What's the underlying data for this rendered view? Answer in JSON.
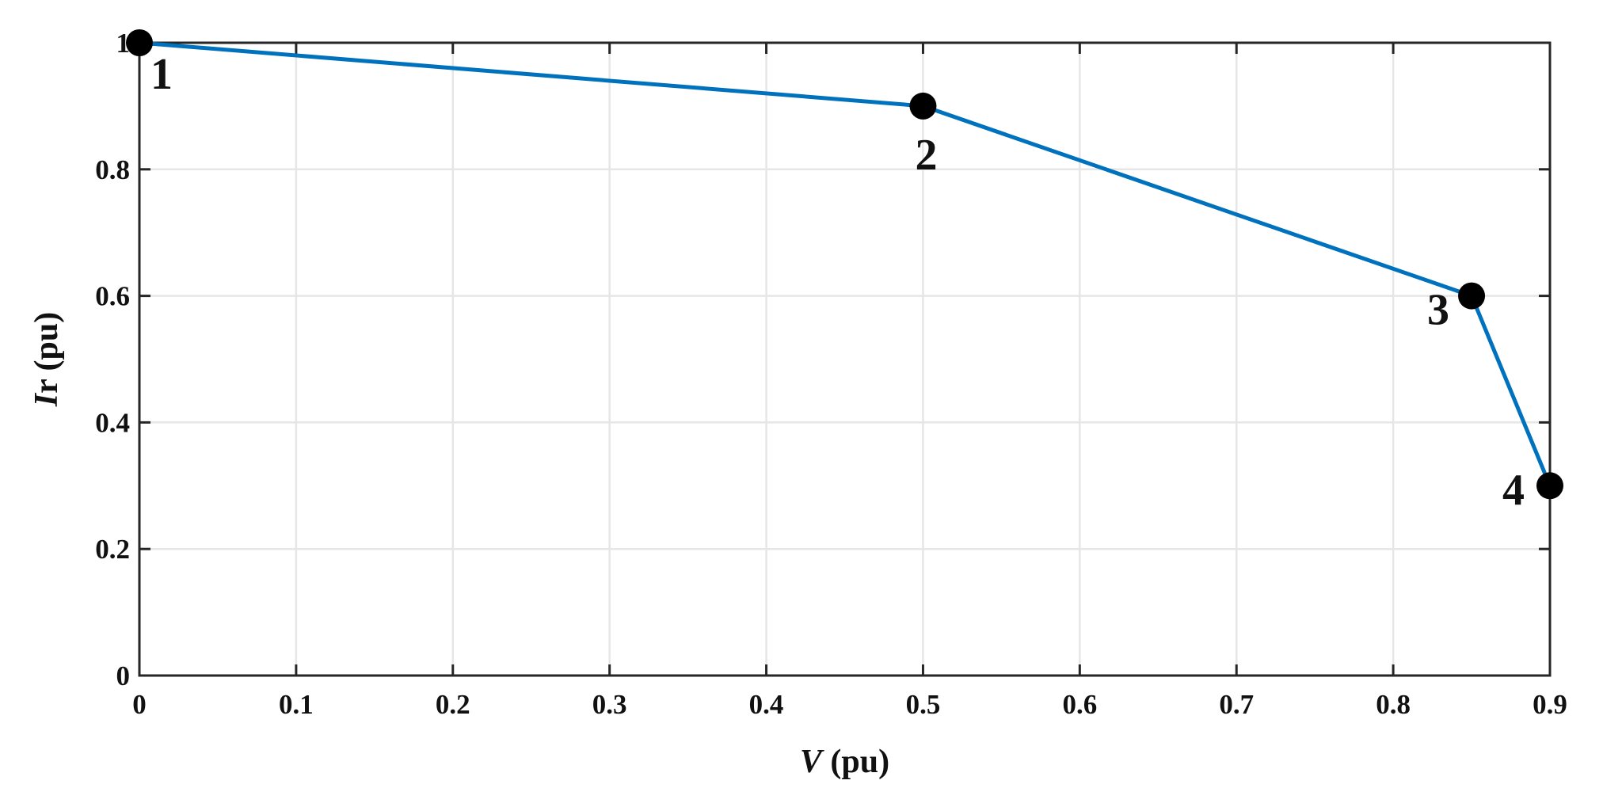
{
  "chart_data": {
    "type": "line",
    "title": "",
    "xlabel": {
      "italic": "V",
      "rest": " (pu)"
    },
    "ylabel": {
      "italic": "I",
      "rest": "r (pu)"
    },
    "xlim": [
      0,
      0.9
    ],
    "ylim": [
      0,
      1
    ],
    "xticks": [
      0,
      0.1,
      0.2,
      0.3,
      0.4,
      0.5,
      0.6,
      0.7,
      0.8,
      0.9
    ],
    "xtick_labels": [
      "0",
      "0.1",
      "0.2",
      "0.3",
      "0.4",
      "0.5",
      "0.6",
      "0.7",
      "0.8",
      "0.9"
    ],
    "yticks": [
      0,
      0.2,
      0.4,
      0.6,
      0.8,
      1
    ],
    "ytick_labels": [
      "0",
      "0.2",
      "0.4",
      "0.6",
      "0.8",
      "1"
    ],
    "grid": true,
    "series": [
      {
        "color": "#0072bd",
        "marker_color": "#000000",
        "x": [
          0,
          0.5,
          0.85,
          0.9
        ],
        "y": [
          1.0,
          0.9,
          0.6,
          0.3
        ],
        "point_labels": [
          "1",
          "2",
          "3",
          "4"
        ]
      }
    ]
  }
}
